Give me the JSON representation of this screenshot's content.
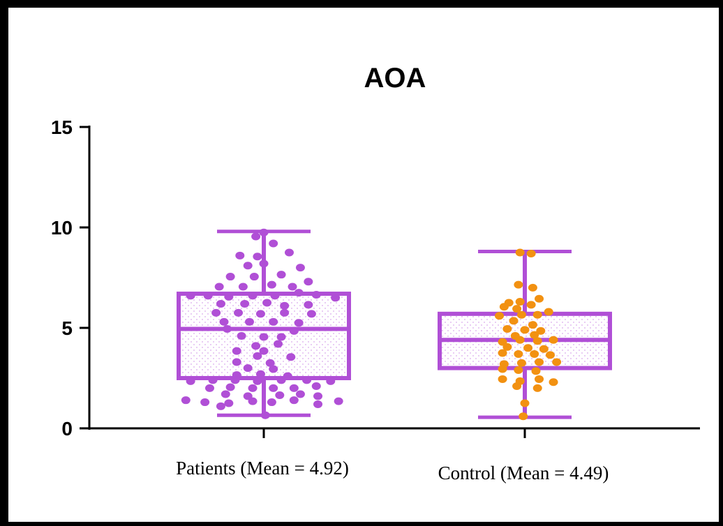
{
  "chart_data": {
    "type": "box",
    "title": "AOA",
    "xlabel": "",
    "ylabel": "",
    "ylim": [
      0,
      15
    ],
    "yticks": [
      0,
      5,
      10,
      15
    ],
    "grid": false,
    "categories": [
      "Patients (Mean = 4.92)",
      "Control (Mean = 4.49)"
    ],
    "series": [
      {
        "name": "Patients (Mean = 4.92)",
        "color": "#b04fd6",
        "point_color": "#b04fd6",
        "box": {
          "min": 0.65,
          "q1": 2.5,
          "median": 4.95,
          "q3": 6.7,
          "max": 9.8
        },
        "points": [
          {
            "x": 0.0,
            "y": 9.75
          },
          {
            "x": -0.05,
            "y": 9.55
          },
          {
            "x": 0.06,
            "y": 9.2
          },
          {
            "x": -0.15,
            "y": 8.6
          },
          {
            "x": -0.04,
            "y": 8.55
          },
          {
            "x": 0.16,
            "y": 8.75
          },
          {
            "x": 0.0,
            "y": 8.2
          },
          {
            "x": -0.1,
            "y": 8.1
          },
          {
            "x": 0.23,
            "y": 8.0
          },
          {
            "x": -0.21,
            "y": 7.55
          },
          {
            "x": -0.06,
            "y": 7.55
          },
          {
            "x": 0.11,
            "y": 7.65
          },
          {
            "x": -0.28,
            "y": 7.05
          },
          {
            "x": -0.13,
            "y": 7.05
          },
          {
            "x": 0.05,
            "y": 7.15
          },
          {
            "x": 0.18,
            "y": 7.05
          },
          {
            "x": 0.28,
            "y": 7.3
          },
          {
            "x": -0.46,
            "y": 6.6
          },
          {
            "x": -0.35,
            "y": 6.6
          },
          {
            "x": -0.22,
            "y": 6.55
          },
          {
            "x": -0.07,
            "y": 6.6
          },
          {
            "x": 0.07,
            "y": 6.6
          },
          {
            "x": 0.22,
            "y": 6.75
          },
          {
            "x": 0.33,
            "y": 6.65
          },
          {
            "x": 0.45,
            "y": 6.5
          },
          {
            "x": -0.27,
            "y": 6.2
          },
          {
            "x": -0.12,
            "y": 6.2
          },
          {
            "x": 0.02,
            "y": 6.25
          },
          {
            "x": 0.13,
            "y": 6.1
          },
          {
            "x": 0.28,
            "y": 6.15
          },
          {
            "x": -0.3,
            "y": 5.75
          },
          {
            "x": -0.16,
            "y": 5.75
          },
          {
            "x": -0.02,
            "y": 5.7
          },
          {
            "x": 0.13,
            "y": 5.75
          },
          {
            "x": 0.3,
            "y": 5.7
          },
          {
            "x": -0.25,
            "y": 5.3
          },
          {
            "x": -0.09,
            "y": 5.3
          },
          {
            "x": 0.06,
            "y": 5.3
          },
          {
            "x": 0.22,
            "y": 5.25
          },
          {
            "x": -0.23,
            "y": 4.95
          },
          {
            "x": 0.19,
            "y": 4.85
          },
          {
            "x": -0.14,
            "y": 4.6
          },
          {
            "x": 0.0,
            "y": 4.55
          },
          {
            "x": 0.11,
            "y": 4.55
          },
          {
            "x": -0.05,
            "y": 4.1
          },
          {
            "x": 0.09,
            "y": 4.2
          },
          {
            "x": -0.17,
            "y": 3.85
          },
          {
            "x": 0.0,
            "y": 3.85
          },
          {
            "x": 0.17,
            "y": 3.55
          },
          {
            "x": -0.04,
            "y": 3.6
          },
          {
            "x": -0.17,
            "y": 3.3
          },
          {
            "x": 0.04,
            "y": 3.25
          },
          {
            "x": -0.1,
            "y": 3.0
          },
          {
            "x": 0.06,
            "y": 2.95
          },
          {
            "x": -0.17,
            "y": 2.65
          },
          {
            "x": -0.02,
            "y": 2.7
          },
          {
            "x": 0.15,
            "y": 2.6
          },
          {
            "x": -0.46,
            "y": 2.35
          },
          {
            "x": -0.32,
            "y": 2.4
          },
          {
            "x": -0.18,
            "y": 2.4
          },
          {
            "x": -0.04,
            "y": 2.35
          },
          {
            "x": 0.11,
            "y": 2.4
          },
          {
            "x": 0.27,
            "y": 2.4
          },
          {
            "x": 0.42,
            "y": 2.35
          },
          {
            "x": -0.34,
            "y": 2.0
          },
          {
            "x": -0.21,
            "y": 2.05
          },
          {
            "x": -0.07,
            "y": 2.0
          },
          {
            "x": 0.06,
            "y": 2.0
          },
          {
            "x": 0.19,
            "y": 2.0
          },
          {
            "x": 0.33,
            "y": 2.1
          },
          {
            "x": -0.24,
            "y": 1.7
          },
          {
            "x": -0.1,
            "y": 1.6
          },
          {
            "x": 0.1,
            "y": 1.65
          },
          {
            "x": 0.23,
            "y": 1.7
          },
          {
            "x": 0.34,
            "y": 1.6
          },
          {
            "x": -0.49,
            "y": 1.4
          },
          {
            "x": -0.37,
            "y": 1.3
          },
          {
            "x": -0.22,
            "y": 1.25
          },
          {
            "x": -0.07,
            "y": 1.35
          },
          {
            "x": 0.05,
            "y": 1.3
          },
          {
            "x": 0.19,
            "y": 1.4
          },
          {
            "x": 0.34,
            "y": 1.2
          },
          {
            "x": 0.47,
            "y": 1.35
          },
          {
            "x": -0.27,
            "y": 1.1
          },
          {
            "x": 0.01,
            "y": 0.65
          }
        ]
      },
      {
        "name": "Control (Mean = 4.49)",
        "color": "#b04fd6",
        "point_color": "#f29111",
        "box": {
          "min": 0.55,
          "q1": 3.0,
          "median": 4.4,
          "q3": 5.7,
          "max": 8.8
        },
        "points": [
          {
            "x": -0.03,
            "y": 8.75
          },
          {
            "x": 0.04,
            "y": 8.7
          },
          {
            "x": -0.04,
            "y": 7.15
          },
          {
            "x": 0.05,
            "y": 7.0
          },
          {
            "x": 0.09,
            "y": 6.45
          },
          {
            "x": -0.1,
            "y": 6.25
          },
          {
            "x": -0.03,
            "y": 6.3
          },
          {
            "x": 0.04,
            "y": 6.15
          },
          {
            "x": -0.13,
            "y": 6.05
          },
          {
            "x": -0.05,
            "y": 5.95
          },
          {
            "x": -0.16,
            "y": 5.6
          },
          {
            "x": -0.02,
            "y": 5.65
          },
          {
            "x": 0.08,
            "y": 5.65
          },
          {
            "x": 0.15,
            "y": 5.8
          },
          {
            "x": -0.07,
            "y": 5.35
          },
          {
            "x": 0.05,
            "y": 5.15
          },
          {
            "x": -0.11,
            "y": 4.95
          },
          {
            "x": 0.0,
            "y": 4.9
          },
          {
            "x": 0.1,
            "y": 4.85
          },
          {
            "x": -0.06,
            "y": 4.6
          },
          {
            "x": 0.06,
            "y": 4.65
          },
          {
            "x": -0.14,
            "y": 4.3
          },
          {
            "x": -0.03,
            "y": 4.4
          },
          {
            "x": 0.08,
            "y": 4.35
          },
          {
            "x": 0.18,
            "y": 4.4
          },
          {
            "x": -0.11,
            "y": 4.05
          },
          {
            "x": 0.02,
            "y": 4.0
          },
          {
            "x": 0.12,
            "y": 3.95
          },
          {
            "x": -0.14,
            "y": 3.75
          },
          {
            "x": -0.04,
            "y": 3.7
          },
          {
            "x": 0.06,
            "y": 3.7
          },
          {
            "x": 0.16,
            "y": 3.65
          },
          {
            "x": -0.13,
            "y": 3.2
          },
          {
            "x": -0.02,
            "y": 3.25
          },
          {
            "x": 0.09,
            "y": 3.3
          },
          {
            "x": 0.2,
            "y": 3.3
          },
          {
            "x": -0.14,
            "y": 2.95
          },
          {
            "x": -0.04,
            "y": 2.9
          },
          {
            "x": 0.07,
            "y": 2.85
          },
          {
            "x": -0.14,
            "y": 2.45
          },
          {
            "x": -0.03,
            "y": 2.35
          },
          {
            "x": 0.09,
            "y": 2.45
          },
          {
            "x": 0.18,
            "y": 2.3
          },
          {
            "x": -0.05,
            "y": 2.1
          },
          {
            "x": 0.08,
            "y": 2.0
          },
          {
            "x": 0.0,
            "y": 1.25
          },
          {
            "x": -0.01,
            "y": 0.6
          }
        ]
      }
    ]
  }
}
